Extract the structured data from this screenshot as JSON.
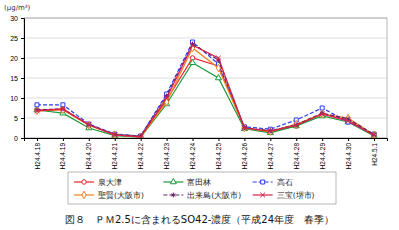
{
  "chart_data": {
    "type": "line",
    "title": "図８　ＰＭ2.5に含まれるSO42-濃度（平成24年度　春季）",
    "y_label": "(μg/m³)",
    "categories": [
      "H24.4.18",
      "H24.4.19",
      "H24.4.20",
      "H24.4.21",
      "H24.4.22",
      "H24.4.23",
      "H24.4.24",
      "H24.4.25",
      "H24.4.26",
      "H24.4.27",
      "H24.4.28",
      "H24.4.29",
      "H24.4.30",
      "H24.5.1"
    ],
    "series": [
      {
        "name": "泉大津",
        "color": "#e8242e",
        "marker": "circle",
        "line_style": "solid",
        "values": [
          7,
          7.2,
          3.3,
          0.8,
          0.3,
          9.5,
          20,
          18,
          2.5,
          1.5,
          3,
          6,
          4.5,
          0.8
        ]
      },
      {
        "name": "富田林",
        "color": "#1a9a3a",
        "marker": "triangle",
        "line_style": "solid",
        "values": [
          7,
          6.2,
          2.5,
          0.6,
          0.2,
          8.5,
          18.8,
          15,
          2.3,
          1.3,
          3,
          5.5,
          4,
          0.5
        ]
      },
      {
        "name": "高石",
        "color": "#2a3aee",
        "marker": "square",
        "line_style": "dashed",
        "values": [
          8.3,
          8.3,
          3.5,
          1,
          0.5,
          11,
          24,
          18.5,
          2.8,
          2.2,
          4.5,
          7.5,
          4,
          1
        ]
      },
      {
        "name": "聖賢(大阪市)",
        "color": "#f08020",
        "marker": "diamond",
        "line_style": "solid",
        "values": [
          6.8,
          7,
          3.2,
          0.8,
          0.3,
          9,
          22.5,
          17.5,
          2.5,
          1.6,
          3.5,
          6,
          5,
          0.8
        ]
      },
      {
        "name": "出来島(大阪市)",
        "color": "#602060",
        "marker": "star",
        "line_style": "dashed",
        "values": [
          7,
          7.3,
          3.3,
          0.9,
          0.5,
          10.5,
          23.5,
          19.5,
          2.6,
          1.8,
          3.3,
          6.2,
          4.8,
          0.9
        ]
      },
      {
        "name": "三宝(堺市)",
        "color": "#d8204a",
        "marker": "x",
        "line_style": "solid",
        "values": [
          6.8,
          7.2,
          3.3,
          0.8,
          0.3,
          10,
          23.2,
          20,
          2.5,
          1.7,
          3.2,
          6,
          4.2,
          0.7
        ]
      }
    ],
    "ylim": [
      0,
      30
    ],
    "yticks": [
      0,
      5,
      10,
      15,
      20,
      25,
      30
    ],
    "grid": true,
    "legend": "bottom"
  }
}
